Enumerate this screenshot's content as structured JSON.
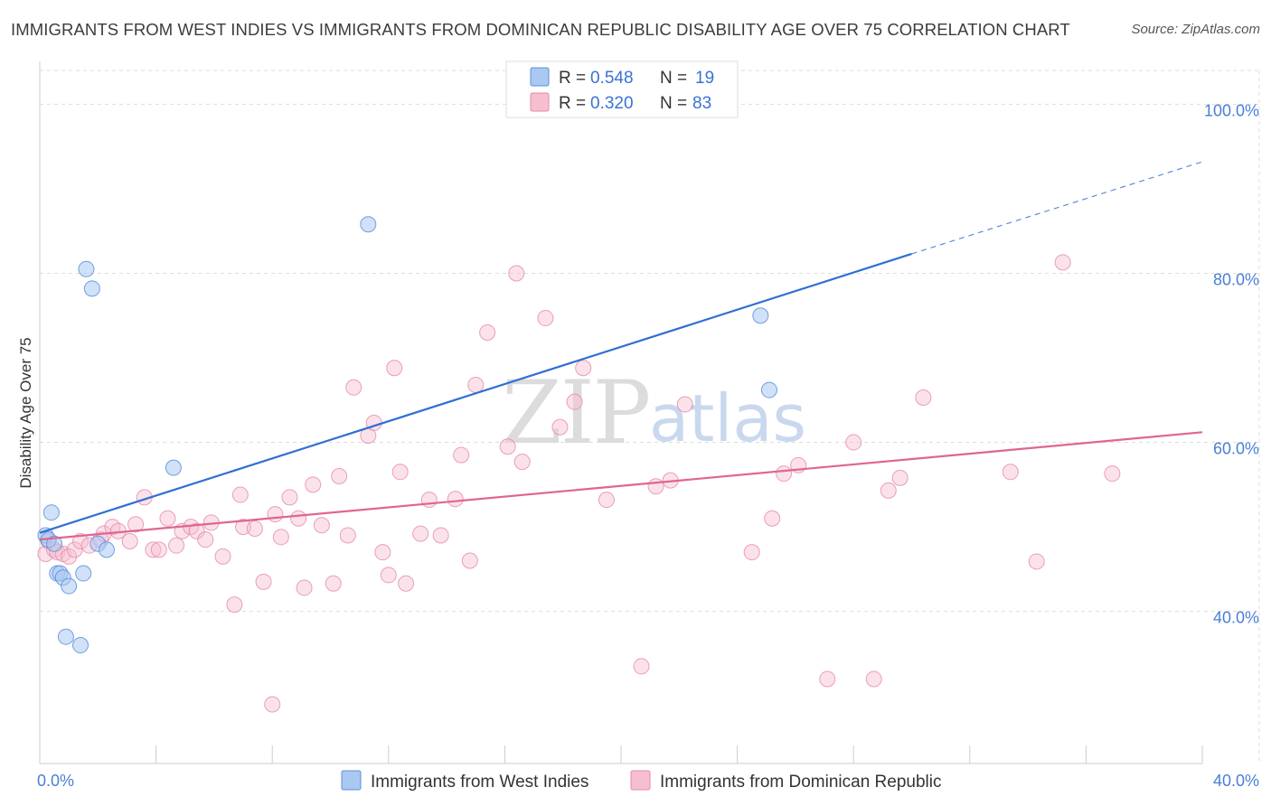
{
  "title": "IMMIGRANTS FROM WEST INDIES VS IMMIGRANTS FROM DOMINICAN REPUBLIC DISABILITY AGE OVER 75 CORRELATION CHART",
  "source": "Source: ZipAtlas.com",
  "watermark": {
    "zip": "ZIP",
    "atlas": "atlas"
  },
  "colors": {
    "blue_fill": "#a9c8f2",
    "blue_stroke": "#5b8fdc",
    "blue_line": "#2f6fd4",
    "pink_fill": "#f6bfd0",
    "pink_stroke": "#e58aa8",
    "pink_line": "#e06592",
    "grid": "#dddddd",
    "axis_label": "#4a7fd4"
  },
  "legend": {
    "r_label": "R =",
    "n_label": "N =",
    "series1_r": "0.548",
    "series1_n": "19",
    "series2_r": "0.320",
    "series2_n": "83"
  },
  "chart_data": {
    "type": "scatter",
    "title": "IMMIGRANTS FROM WEST INDIES VS IMMIGRANTS FROM DOMINICAN REPUBLIC DISABILITY AGE OVER 75 CORRELATION CHART",
    "xlabel": "",
    "ylabel": "Disability Age Over 75",
    "xlim": [
      0,
      40
    ],
    "ylim": [
      22,
      104
    ],
    "x_tick_labels": [
      {
        "value": 0,
        "label": "0.0%"
      },
      {
        "value": 40,
        "label": "40.0%"
      }
    ],
    "y_ticks": [
      {
        "value": 40,
        "label": "40.0%"
      },
      {
        "value": 60,
        "label": "60.0%"
      },
      {
        "value": 80,
        "label": "80.0%"
      },
      {
        "value": 100,
        "label": "100.0%"
      }
    ],
    "series": [
      {
        "name": "Immigrants from West Indies",
        "color": "blue",
        "R": 0.548,
        "N": 19,
        "trend": {
          "x0": 0,
          "y0": 49.3,
          "x1": 30,
          "y1": 82.3,
          "dashed_to_x": 40,
          "dashed_to_y": 93.2
        },
        "points": [
          [
            0.2,
            49.0
          ],
          [
            0.3,
            48.5
          ],
          [
            0.4,
            51.7
          ],
          [
            0.5,
            48.0
          ],
          [
            0.6,
            44.5
          ],
          [
            0.7,
            44.5
          ],
          [
            0.8,
            44.0
          ],
          [
            1.0,
            43.0
          ],
          [
            0.9,
            37.0
          ],
          [
            1.4,
            36.0
          ],
          [
            1.5,
            44.5
          ],
          [
            1.6,
            80.5
          ],
          [
            1.8,
            78.2
          ],
          [
            2.0,
            48.0
          ],
          [
            2.3,
            47.3
          ],
          [
            4.6,
            57.0
          ],
          [
            11.3,
            85.8
          ],
          [
            24.8,
            75.0
          ],
          [
            25.1,
            66.2
          ]
        ]
      },
      {
        "name": "Immigrants from Dominican Republic",
        "color": "pink",
        "R": 0.32,
        "N": 83,
        "trend": {
          "x0": 0,
          "y0": 48.5,
          "x1": 40,
          "y1": 61.2
        },
        "points": [
          [
            0.2,
            46.8
          ],
          [
            0.3,
            48.3
          ],
          [
            0.5,
            47.3
          ],
          [
            0.6,
            47.0
          ],
          [
            0.8,
            46.8
          ],
          [
            1.0,
            46.5
          ],
          [
            1.2,
            47.3
          ],
          [
            1.4,
            48.3
          ],
          [
            1.7,
            47.8
          ],
          [
            2.1,
            48.5
          ],
          [
            2.2,
            49.2
          ],
          [
            2.5,
            50.0
          ],
          [
            2.7,
            49.5
          ],
          [
            3.1,
            48.3
          ],
          [
            3.3,
            50.3
          ],
          [
            3.6,
            53.5
          ],
          [
            3.9,
            47.3
          ],
          [
            4.1,
            47.3
          ],
          [
            4.4,
            51.0
          ],
          [
            4.7,
            47.8
          ],
          [
            4.9,
            49.5
          ],
          [
            5.2,
            50.0
          ],
          [
            5.4,
            49.5
          ],
          [
            5.7,
            48.5
          ],
          [
            5.9,
            50.5
          ],
          [
            6.3,
            46.5
          ],
          [
            6.7,
            40.8
          ],
          [
            6.9,
            53.8
          ],
          [
            7.0,
            50.0
          ],
          [
            7.4,
            49.8
          ],
          [
            7.7,
            43.5
          ],
          [
            8.0,
            29.0
          ],
          [
            8.1,
            51.5
          ],
          [
            8.3,
            48.8
          ],
          [
            8.6,
            53.5
          ],
          [
            8.9,
            51.0
          ],
          [
            9.1,
            42.8
          ],
          [
            9.4,
            55.0
          ],
          [
            9.7,
            50.2
          ],
          [
            10.1,
            43.3
          ],
          [
            10.3,
            56.0
          ],
          [
            10.6,
            49.0
          ],
          [
            10.8,
            66.5
          ],
          [
            11.3,
            60.8
          ],
          [
            11.5,
            62.3
          ],
          [
            11.8,
            47.0
          ],
          [
            12.0,
            44.3
          ],
          [
            12.2,
            68.8
          ],
          [
            12.4,
            56.5
          ],
          [
            12.6,
            43.3
          ],
          [
            13.1,
            49.2
          ],
          [
            13.4,
            53.2
          ],
          [
            13.8,
            49.0
          ],
          [
            14.3,
            53.3
          ],
          [
            14.5,
            58.5
          ],
          [
            14.8,
            46.0
          ],
          [
            15.0,
            66.8
          ],
          [
            15.4,
            73.0
          ],
          [
            16.1,
            59.5
          ],
          [
            16.4,
            80.0
          ],
          [
            16.6,
            57.7
          ],
          [
            17.4,
            74.7
          ],
          [
            17.9,
            61.8
          ],
          [
            18.4,
            64.8
          ],
          [
            18.7,
            68.8
          ],
          [
            19.5,
            53.2
          ],
          [
            20.7,
            33.5
          ],
          [
            21.2,
            54.8
          ],
          [
            21.7,
            55.5
          ],
          [
            22.2,
            64.5
          ],
          [
            24.5,
            47.0
          ],
          [
            25.2,
            51.0
          ],
          [
            25.6,
            56.3
          ],
          [
            26.1,
            57.3
          ],
          [
            27.1,
            32.0
          ],
          [
            28.0,
            60.0
          ],
          [
            28.7,
            32.0
          ],
          [
            29.2,
            54.3
          ],
          [
            29.6,
            55.8
          ],
          [
            30.4,
            65.3
          ],
          [
            33.4,
            56.5
          ],
          [
            34.3,
            45.9
          ],
          [
            35.2,
            81.3
          ],
          [
            36.9,
            56.3
          ]
        ]
      }
    ],
    "bottom_legend": [
      "Immigrants from West Indies",
      "Immigrants from Dominican Republic"
    ]
  }
}
